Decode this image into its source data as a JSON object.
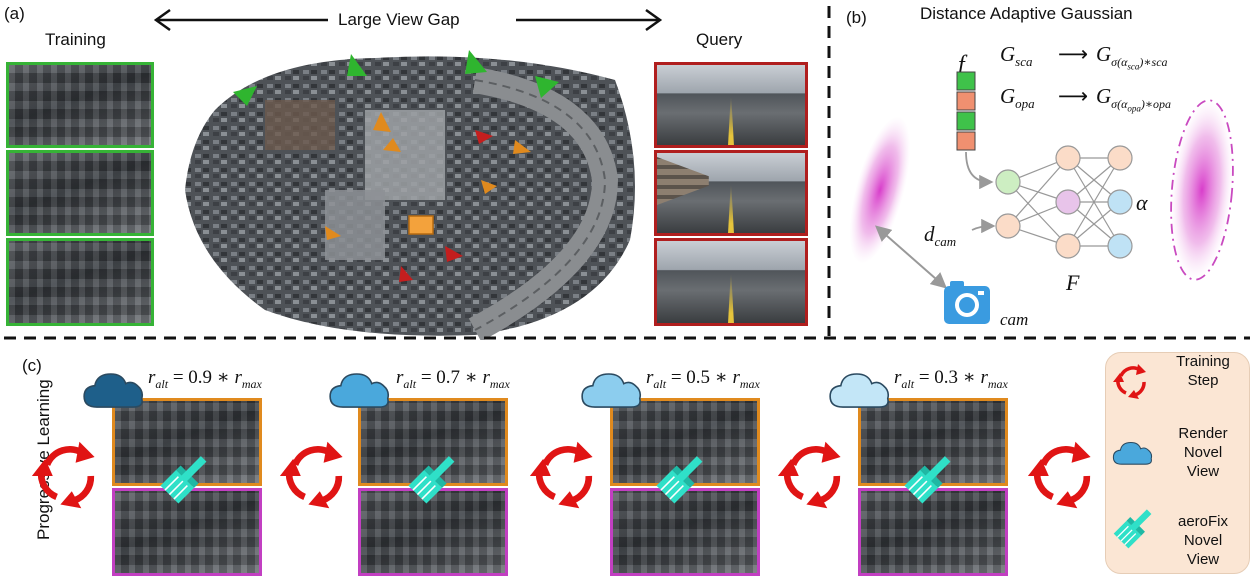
{
  "panel_a": {
    "tag": "(a)",
    "training_label": "Training",
    "query_label": "Query",
    "gap_label": "Large View Gap"
  },
  "panel_b": {
    "tag": "(b)",
    "title": "Distance Adaptive Gaussian",
    "feature_symbol": "f",
    "g_sca": "G",
    "g_sca_sub": "sca",
    "g_opa": "G",
    "g_opa_sub": "opa",
    "arrow": "⟶",
    "g_sca_out": "G",
    "g_sca_out_sub": "σ(α",
    "g_sca_out_sub2": "sca",
    "g_sca_out_sub3": ")∗sca",
    "g_opa_out": "G",
    "g_opa_out_sub": "σ(α",
    "g_opa_out_sub2": "opa",
    "g_opa_out_sub3": ")∗opa",
    "alpha": "α",
    "network": "F",
    "dist": "d",
    "dist_sub": "cam",
    "cam_label": "cam"
  },
  "panel_c": {
    "tag": "(c)",
    "side_label": "Progressive Learning",
    "steps": [
      {
        "r": "r",
        "r_sub": "alt",
        "eq": " = 0.9 ∗ ",
        "rmax": "r",
        "rmax_sub": "max",
        "cloud_color": "#1e5f8a"
      },
      {
        "r": "r",
        "r_sub": "alt",
        "eq": " = 0.7 ∗ ",
        "rmax": "r",
        "rmax_sub": "max",
        "cloud_color": "#4aa8dc"
      },
      {
        "r": "r",
        "r_sub": "alt",
        "eq": " = 0.5 ∗ ",
        "rmax": "r",
        "rmax_sub": "max",
        "cloud_color": "#8ccdee"
      },
      {
        "r": "r",
        "r_sub": "alt",
        "eq": " = 0.3 ∗ ",
        "rmax": "r",
        "rmax_sub": "max",
        "cloud_color": "#c3e6f7"
      }
    ],
    "legend": {
      "training_step": "Training Step",
      "render_novel_view": "Render Novel View",
      "aerofix_novel_view": "aeroFix Novel View"
    }
  },
  "colors": {
    "green": "#36b336",
    "red": "#b01e1e",
    "orange": "#e08a1e",
    "purple": "#c23fc2",
    "cycle_red": "#e01414",
    "brush": "#2fe0c8",
    "legend_bg": "#fbe6d4"
  }
}
